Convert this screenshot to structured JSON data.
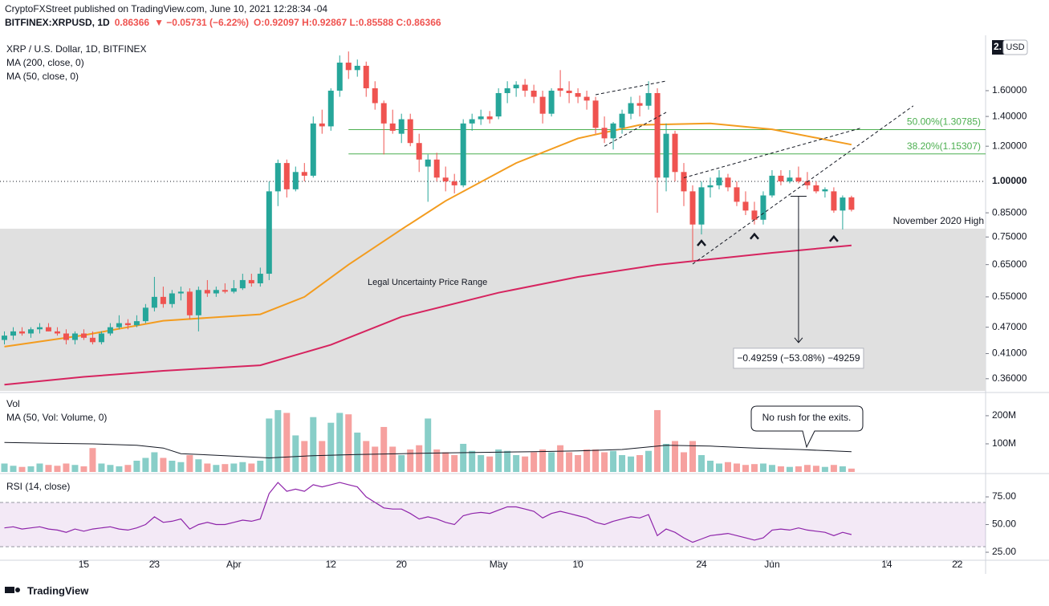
{
  "header": {
    "publisher": "CryptoFXStreet published on TradingView.com, June 10, 2021 12:28:34 -04",
    "symbol": "BITFINEX:XRPUSD, 1D",
    "last": "0.86366",
    "change": "▼ −0.05731 (−6.22%)",
    "ohlc": "O:0.92097 H:0.92867 L:0.85588 C:0.86366",
    "price_cut": "2.",
    "currency": "USD",
    "footer": "TradingView"
  },
  "chart_data": [
    {
      "type": "candlestick",
      "title": "XRP / U.S. Dollar, 1D, BITFINEX",
      "log_scale": true,
      "up_color": "#26a69a",
      "down_color": "#ef5350",
      "x": [
        65,
        66,
        67,
        68,
        69,
        70,
        71,
        72,
        73,
        74,
        75,
        76,
        77,
        78,
        79,
        80,
        81,
        82,
        83,
        84,
        85,
        86,
        87,
        88,
        89,
        90,
        91,
        92,
        93,
        94,
        95,
        96,
        97,
        98,
        99,
        100,
        101,
        102,
        103,
        104,
        105,
        106,
        107,
        108,
        109,
        110,
        111,
        112,
        113,
        114,
        115,
        116,
        117,
        118,
        119,
        120,
        121,
        122,
        123,
        124,
        125,
        126,
        127,
        128,
        129,
        130,
        131,
        132,
        133,
        134,
        135,
        136,
        137,
        138,
        139,
        140,
        141,
        142,
        143,
        144,
        145,
        146,
        147,
        148,
        149,
        150,
        151,
        152,
        153,
        154,
        155,
        156,
        157,
        158,
        159,
        160,
        161
      ],
      "open": [
        0.44,
        0.45,
        0.46,
        0.455,
        0.465,
        0.47,
        0.46,
        0.455,
        0.44,
        0.455,
        0.445,
        0.435,
        0.455,
        0.47,
        0.48,
        0.475,
        0.485,
        0.52,
        0.55,
        0.53,
        0.56,
        0.565,
        0.5,
        0.57,
        0.56,
        0.57,
        0.565,
        0.575,
        0.6,
        0.59,
        0.62,
        0.95,
        1.1,
        0.96,
        1.05,
        1.03,
        1.35,
        1.33,
        1.6,
        1.85,
        1.78,
        1.82,
        1.62,
        1.5,
        1.35,
        1.28,
        1.38,
        1.22,
        1.08,
        1.12,
        1.02,
        1.0,
        0.98,
        1.35,
        1.38,
        1.4,
        1.4,
        1.58,
        1.62,
        1.65,
        1.6,
        1.55,
        1.42,
        1.62,
        1.6,
        1.58,
        1.55,
        1.52,
        1.32,
        1.25,
        1.32,
        1.42,
        1.5,
        1.48,
        1.58,
        1.02,
        1.28,
        1.05,
        0.95,
        0.8,
        0.97,
        0.98,
        1.02,
        0.97,
        0.9,
        0.86,
        0.82,
        0.93,
        1.03,
        1.0,
        1.02,
        1.0,
        0.98,
        0.95,
        0.95,
        0.86,
        0.92097
      ],
      "high": [
        0.46,
        0.47,
        0.47,
        0.47,
        0.48,
        0.48,
        0.47,
        0.465,
        0.46,
        0.465,
        0.46,
        0.46,
        0.48,
        0.5,
        0.49,
        0.5,
        0.53,
        0.61,
        0.58,
        0.57,
        0.58,
        0.575,
        0.58,
        0.6,
        0.58,
        0.59,
        0.6,
        0.62,
        0.62,
        0.64,
        1.0,
        1.12,
        1.12,
        1.08,
        1.1,
        1.4,
        1.45,
        1.62,
        1.92,
        1.96,
        1.88,
        1.86,
        1.68,
        1.52,
        1.45,
        1.42,
        1.42,
        1.28,
        1.15,
        1.16,
        1.08,
        1.04,
        1.38,
        1.42,
        1.45,
        1.44,
        1.62,
        1.68,
        1.68,
        1.7,
        1.65,
        1.6,
        1.62,
        1.78,
        1.68,
        1.62,
        1.6,
        1.55,
        1.4,
        1.36,
        1.45,
        1.55,
        1.56,
        1.68,
        1.62,
        1.35,
        1.3,
        1.1,
        0.98,
        1.0,
        1.02,
        1.06,
        1.04,
        1.0,
        0.95,
        0.9,
        0.95,
        1.06,
        1.06,
        1.06,
        1.08,
        1.05,
        1.0,
        0.97,
        0.97,
        0.93,
        0.92867
      ],
      "low": [
        0.43,
        0.44,
        0.45,
        0.445,
        0.455,
        0.46,
        0.45,
        0.43,
        0.43,
        0.44,
        0.43,
        0.43,
        0.45,
        0.465,
        0.465,
        0.47,
        0.48,
        0.51,
        0.52,
        0.52,
        0.54,
        0.49,
        0.46,
        0.55,
        0.55,
        0.56,
        0.56,
        0.57,
        0.58,
        0.58,
        0.6,
        0.88,
        0.92,
        0.95,
        1.0,
        1.02,
        1.28,
        1.3,
        1.55,
        1.7,
        1.72,
        1.55,
        1.45,
        1.15,
        1.28,
        1.22,
        1.2,
        1.05,
        0.9,
        1.0,
        0.95,
        0.94,
        0.97,
        1.3,
        1.34,
        1.35,
        1.38,
        1.5,
        1.55,
        1.55,
        1.5,
        1.35,
        1.4,
        1.55,
        1.5,
        1.5,
        1.45,
        1.28,
        1.22,
        1.18,
        1.28,
        1.38,
        1.4,
        1.45,
        0.85,
        0.95,
        1.0,
        0.88,
        0.66,
        0.76,
        0.92,
        0.96,
        0.95,
        0.88,
        0.84,
        0.8,
        0.8,
        0.92,
        0.98,
        0.99,
        0.99,
        0.96,
        0.94,
        0.92,
        0.85,
        0.78,
        0.85588
      ],
      "close": [
        0.45,
        0.46,
        0.455,
        0.465,
        0.47,
        0.46,
        0.455,
        0.44,
        0.455,
        0.445,
        0.435,
        0.455,
        0.47,
        0.48,
        0.475,
        0.485,
        0.52,
        0.55,
        0.53,
        0.56,
        0.565,
        0.5,
        0.57,
        0.56,
        0.57,
        0.565,
        0.575,
        0.6,
        0.59,
        0.62,
        0.95,
        1.1,
        0.96,
        1.05,
        1.03,
        1.35,
        1.33,
        1.6,
        1.85,
        1.78,
        1.82,
        1.62,
        1.5,
        1.35,
        1.3,
        1.38,
        1.22,
        1.12,
        1.12,
        1.02,
        1.0,
        0.98,
        1.35,
        1.38,
        1.4,
        1.38,
        1.58,
        1.62,
        1.65,
        1.6,
        1.55,
        1.42,
        1.6,
        1.6,
        1.58,
        1.55,
        1.52,
        1.32,
        1.25,
        1.35,
        1.42,
        1.5,
        1.48,
        1.58,
        1.02,
        1.28,
        1.05,
        0.95,
        0.8,
        0.97,
        0.98,
        1.02,
        0.97,
        0.9,
        0.86,
        0.82,
        0.93,
        1.03,
        1.0,
        1.02,
        1.0,
        0.98,
        0.95,
        0.96,
        0.86,
        0.92,
        0.86366
      ],
      "xlim": [
        64.5,
        176.2
      ],
      "ylim": [
        0.338,
        2.096
      ],
      "xticks": [
        {
          "value": 74,
          "label": "15"
        },
        {
          "value": 82,
          "label": "23"
        },
        {
          "value": 91,
          "label": "Apr"
        },
        {
          "value": 102,
          "label": "12"
        },
        {
          "value": 110,
          "label": "20"
        },
        {
          "value": 121,
          "label": "May"
        },
        {
          "value": 130,
          "label": "10"
        },
        {
          "value": 144,
          "label": "24"
        },
        {
          "value": 152,
          "label": "Jun"
        },
        {
          "value": 165,
          "label": "14"
        },
        {
          "value": 173,
          "label": "22"
        }
      ],
      "yticks": [
        {
          "value": 1.6,
          "label": "1.60000"
        },
        {
          "value": 1.4,
          "label": "1.40000"
        },
        {
          "value": 1.2,
          "label": "1.20000"
        },
        {
          "value": 0.85,
          "label": "0.85000"
        },
        {
          "value": 0.75,
          "label": "0.75000"
        },
        {
          "value": 0.65,
          "label": "0.65000"
        },
        {
          "value": 0.55,
          "label": "0.55000"
        },
        {
          "value": 0.47,
          "label": "0.47000"
        },
        {
          "value": 0.41,
          "label": "0.41000"
        },
        {
          "value": 0.36,
          "label": "0.36000"
        }
      ],
      "series": [
        {
          "name": "MA (200, close, 0)",
          "color": "#d6245f",
          "x": [
            65,
            74,
            83,
            94,
            102,
            110,
            121,
            130,
            139,
            152,
            161
          ],
          "values": [
            0.349,
            0.3635,
            0.375,
            0.386,
            0.429,
            0.496,
            0.562,
            0.61,
            0.649,
            0.691,
            0.718
          ]
        },
        {
          "name": "MA (50, close, 0)",
          "color": "#f39c1f",
          "x": [
            65,
            74,
            83,
            94,
            99,
            104,
            110,
            115,
            123,
            130,
            137,
            145,
            152,
            161
          ],
          "values": [
            0.425,
            0.451,
            0.486,
            0.5025,
            0.55,
            0.65,
            0.78,
            0.904,
            1.1,
            1.25,
            1.34,
            1.35,
            1.31,
            1.21
          ]
        }
      ],
      "levels": [
        {
          "label": "50.00%(1.30785)",
          "value": 1.30785,
          "x_start": 104,
          "color": "#4caf50"
        },
        {
          "label": "38.20%(1.15307)",
          "value": 1.15307,
          "x_start": 104,
          "color": "#4caf50"
        }
      ],
      "hline": {
        "value": 1.0,
        "label": "1.00000"
      },
      "zone": {
        "label": "Legal Uncertainty  Price Range",
        "top_label": "November 2020 High",
        "range": [
          0.338,
          0.783
        ]
      },
      "trendlines": [
        [
          [
            132,
            1.567
          ],
          [
            140,
            1.682
          ]
        ],
        [
          [
            133,
            1.2
          ],
          [
            140,
            1.43
          ]
        ],
        [
          [
            143,
            0.652
          ],
          [
            168,
            1.479
          ]
        ],
        [
          [
            142,
            1.019
          ],
          [
            162,
            1.317
          ]
        ]
      ],
      "carets": [
        [
          144,
          0.729
        ],
        [
          150,
          0.755
        ],
        [
          159,
          0.745
        ]
      ],
      "measure": {
        "label": "−0.49259 (−53.08%) −49259",
        "x": 155,
        "from": 0.926,
        "to": 0.434
      }
    },
    {
      "type": "bar",
      "title": "Vol",
      "annotation": "No rush for the exits.",
      "values": [
        30000000,
        22000000,
        18000000,
        20000000,
        30000000,
        25000000,
        22000000,
        30000000,
        25000000,
        20000000,
        85000000,
        30000000,
        25000000,
        20000000,
        25000000,
        40000000,
        50000000,
        70000000,
        50000000,
        40000000,
        35000000,
        60000000,
        45000000,
        30000000,
        25000000,
        28000000,
        30000000,
        35000000,
        30000000,
        40000000,
        190000000,
        220000000,
        210000000,
        130000000,
        110000000,
        195000000,
        110000000,
        175000000,
        210000000,
        205000000,
        140000000,
        110000000,
        90000000,
        160000000,
        90000000,
        60000000,
        80000000,
        95000000,
        190000000,
        80000000,
        70000000,
        60000000,
        100000000,
        75000000,
        60000000,
        55000000,
        80000000,
        75000000,
        60000000,
        55000000,
        70000000,
        80000000,
        70000000,
        95000000,
        70000000,
        60000000,
        80000000,
        80000000,
        70000000,
        75000000,
        60000000,
        55000000,
        60000000,
        75000000,
        220000000,
        100000000,
        110000000,
        70000000,
        110000000,
        60000000,
        40000000,
        30000000,
        35000000,
        30000000,
        25000000,
        28000000,
        30000000,
        25000000,
        20000000,
        18000000,
        20000000,
        25000000,
        22000000,
        18000000,
        25000000,
        20000000,
        12000000
      ],
      "ylim": [
        0,
        274000000
      ],
      "yticks": [
        {
          "value": 100000000,
          "label": "100M"
        },
        {
          "value": 200000000,
          "label": "200M"
        }
      ],
      "series": [
        {
          "name": "MA (50, Vol: Volume, 0)",
          "color": "#131722",
          "x": [
            65,
            70,
            75,
            80,
            83,
            85,
            90,
            95,
            100,
            105,
            110,
            115,
            120,
            125,
            130,
            135,
            140,
            145,
            150,
            155,
            161
          ],
          "values": [
            105000000,
            102000000,
            100000000,
            95000000,
            85000000,
            65000000,
            58000000,
            50000000,
            58000000,
            62000000,
            65000000,
            68000000,
            70000000,
            72000000,
            75000000,
            80000000,
            95000000,
            92000000,
            85000000,
            80000000,
            72000000
          ]
        }
      ]
    },
    {
      "type": "line",
      "title": "RSI (14, close)",
      "color": "#8e24aa",
      "band": [
        30,
        70
      ],
      "values": [
        47,
        48,
        46,
        47,
        48,
        46,
        45,
        43,
        46,
        44,
        46,
        47,
        48,
        46,
        45,
        47,
        50,
        57,
        52,
        53,
        55,
        46,
        50,
        52,
        50,
        50,
        52,
        54,
        53,
        55,
        78,
        88,
        80,
        82,
        80,
        86,
        84,
        86,
        88,
        86,
        84,
        75,
        70,
        65,
        64,
        64,
        60,
        55,
        57,
        55,
        52,
        50,
        58,
        60,
        61,
        60,
        63,
        66,
        66,
        64,
        62,
        56,
        60,
        62,
        60,
        58,
        56,
        52,
        50,
        53,
        55,
        57,
        56,
        59,
        40,
        46,
        43,
        38,
        34,
        37,
        40,
        41,
        42,
        40,
        38,
        36,
        38,
        45,
        46,
        45,
        47,
        45,
        44,
        43,
        40,
        43,
        41
      ],
      "ylim": [
        18.5,
        94.6
      ],
      "yticks": [
        {
          "value": 75,
          "label": "75.00"
        },
        {
          "value": 50,
          "label": "50.00"
        },
        {
          "value": 25,
          "label": "25.00"
        }
      ]
    }
  ]
}
